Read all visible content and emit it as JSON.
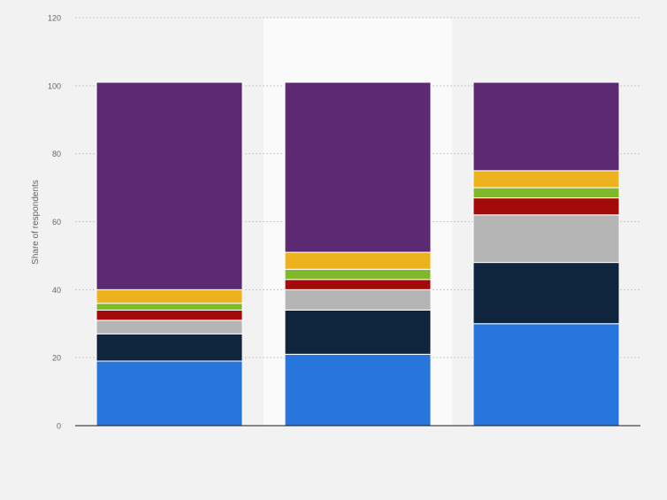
{
  "chart_data": {
    "type": "bar",
    "stacked": true,
    "title": "",
    "xlabel": "",
    "ylabel": "Share of respondents",
    "ylim": [
      0,
      120
    ],
    "yticks": [
      0,
      20,
      40,
      60,
      80,
      100,
      120
    ],
    "grid": true,
    "legend": "none",
    "highlighted_category_index": 1,
    "categories": [
      "",
      "",
      ""
    ],
    "series": [
      {
        "values": [
          19,
          21,
          30
        ],
        "color": "#2876dd"
      },
      {
        "values": [
          8,
          13,
          18
        ],
        "color": "#0f253d"
      },
      {
        "values": [
          4,
          6,
          14
        ],
        "color": "#b5b5b5"
      },
      {
        "values": [
          3,
          3,
          5
        ],
        "color": "#a30b0b"
      },
      {
        "values": [
          2,
          3,
          3
        ],
        "color": "#7fb829"
      },
      {
        "values": [
          4,
          5,
          5
        ],
        "color": "#ecb31f"
      },
      {
        "values": [
          61,
          50,
          26
        ],
        "color": "#5c2a72"
      }
    ]
  }
}
